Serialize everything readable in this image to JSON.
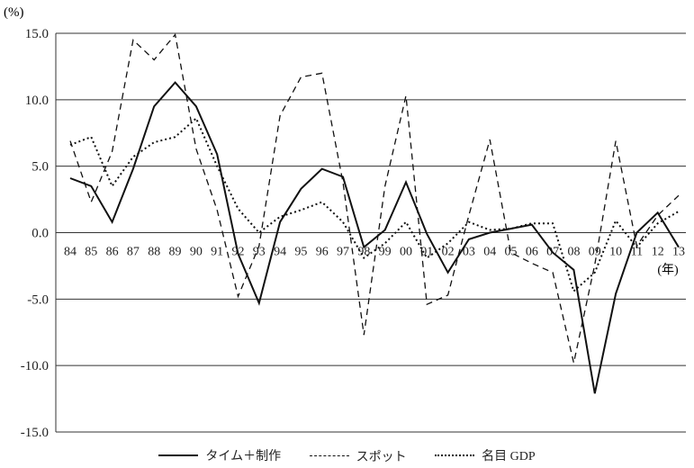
{
  "chart_data": {
    "type": "line",
    "y_unit": "(%)",
    "x_unit": "(年)",
    "ylim": [
      -15,
      15
    ],
    "y_ticks": [
      "15.0",
      "10.0",
      "5.0",
      "0.0",
      "-5.0",
      "-10.0",
      "-15.0"
    ],
    "y_tick_values": [
      15,
      10,
      5,
      0,
      -5,
      -10,
      -15
    ],
    "categories": [
      "84",
      "85",
      "86",
      "87",
      "88",
      "89",
      "90",
      "91",
      "92",
      "93",
      "94",
      "95",
      "96",
      "97",
      "98",
      "99",
      "00",
      "01",
      "02",
      "03",
      "04",
      "05",
      "06",
      "07",
      "08",
      "09",
      "10",
      "11",
      "12",
      "13"
    ],
    "grid": "horizontal",
    "legend_position": "bottom",
    "series": [
      {
        "name": "タイム＋制作",
        "style": "solid",
        "values": [
          4.1,
          3.5,
          0.8,
          4.8,
          9.5,
          11.3,
          9.5,
          5.9,
          -1.6,
          -5.3,
          0.8,
          3.3,
          4.8,
          4.2,
          -1.1,
          0.2,
          3.8,
          -0.1,
          -3.0,
          -0.5,
          0.0,
          0.3,
          0.6,
          -1.5,
          -2.8,
          -12.1,
          -4.6,
          0.0,
          1.5,
          -1.1
        ]
      },
      {
        "name": "スポット",
        "style": "dashed",
        "values": [
          6.9,
          2.3,
          6.1,
          14.5,
          13.0,
          14.9,
          6.3,
          1.7,
          -4.8,
          -1.0,
          8.8,
          11.7,
          12.0,
          3.8,
          -7.7,
          3.5,
          10.3,
          -5.4,
          -4.7,
          1.3,
          7.0,
          -1.5,
          -2.3,
          -3.0,
          -9.8,
          -2.4,
          6.9,
          -1.0,
          1.3,
          2.8
        ]
      },
      {
        "name": "名目 GDP",
        "style": "dotted",
        "values": [
          6.6,
          7.2,
          3.5,
          5.7,
          6.8,
          7.2,
          8.6,
          5.0,
          1.8,
          0.0,
          1.2,
          1.7,
          2.3,
          0.8,
          -1.9,
          -0.8,
          0.8,
          -1.9,
          -0.8,
          0.8,
          0.2,
          0.3,
          0.7,
          0.7,
          -4.4,
          -3.0,
          0.9,
          -1.1,
          0.7,
          1.6
        ]
      }
    ]
  }
}
